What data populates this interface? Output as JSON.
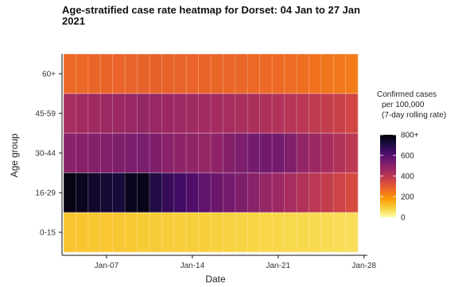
{
  "chart_data": {
    "type": "heatmap",
    "title": "Age-stratified case rate heatmap for Dorset: 04 Jan to 27 Jan\n2021",
    "xlabel": "Date",
    "ylabel": "Age group",
    "x_start": "2021-01-04",
    "x_end": "2021-01-27",
    "x_ticks": [
      "Jan-07",
      "Jan-14",
      "Jan-21",
      "Jan-28"
    ],
    "y_categories": [
      "0-15",
      "16-29",
      "30-44",
      "45-59",
      "60+"
    ],
    "color_scale": {
      "min": 0,
      "max": 800,
      "ticks": [
        "0",
        "200",
        "400",
        "600",
        "800+"
      ],
      "colors": [
        "#fcffa4",
        "#f7d13d",
        "#fb9b06",
        "#ed6925",
        "#cf4446",
        "#a52c60",
        "#781c6d",
        "#4a0c6b",
        "#1b0c41",
        "#000004"
      ]
    },
    "legend_title": [
      "Confirmed cases",
      "per 100,000",
      "(7-day rolling rate)"
    ],
    "legend_position": "right",
    "grid": true,
    "rows": [
      {
        "group": "60+",
        "values": [
          270,
          272,
          275,
          278,
          280,
          282,
          283,
          284,
          283,
          282,
          280,
          278,
          276,
          274,
          272,
          270,
          268,
          266,
          262,
          258,
          250,
          245,
          240,
          235
        ]
      },
      {
        "group": "45-59",
        "values": [
          440,
          450,
          455,
          460,
          462,
          470,
          480,
          470,
          465,
          460,
          455,
          450,
          445,
          440,
          435,
          430,
          425,
          420,
          410,
          400,
          390,
          380,
          370,
          350
        ]
      },
      {
        "group": "30-44",
        "values": [
          500,
          505,
          510,
          515,
          520,
          525,
          530,
          520,
          500,
          490,
          485,
          480,
          490,
          510,
          525,
          540,
          545,
          540,
          520,
          480,
          460,
          440,
          420,
          400
        ]
      },
      {
        "group": "16-29",
        "values": [
          780,
          760,
          740,
          730,
          720,
          760,
          770,
          700,
          660,
          640,
          610,
          580,
          560,
          540,
          520,
          500,
          480,
          460,
          440,
          420,
          400,
          380,
          360,
          340
        ]
      },
      {
        "group": "0-15",
        "values": [
          110,
          108,
          106,
          105,
          104,
          102,
          100,
          98,
          96,
          94,
          92,
          90,
          88,
          86,
          84,
          82,
          80,
          78,
          76,
          74,
          72,
          70,
          68,
          66
        ]
      }
    ]
  }
}
